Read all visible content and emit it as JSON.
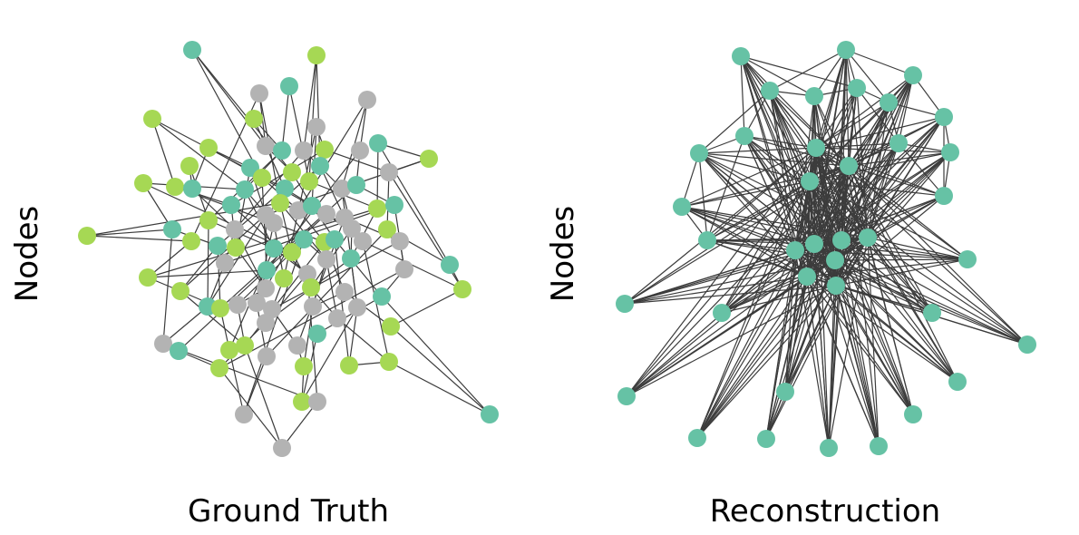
{
  "colors": {
    "teal": "#66c2a5",
    "lime": "#a6d854",
    "gray": "#b3b3b3",
    "edge": "#3c3c3c"
  },
  "panels": [
    {
      "id": "ground-truth",
      "title": "Ground Truth",
      "ylabel": "Nodes"
    },
    {
      "id": "reconstruction",
      "title": "Reconstruction",
      "ylabel": "Nodes"
    }
  ]
}
